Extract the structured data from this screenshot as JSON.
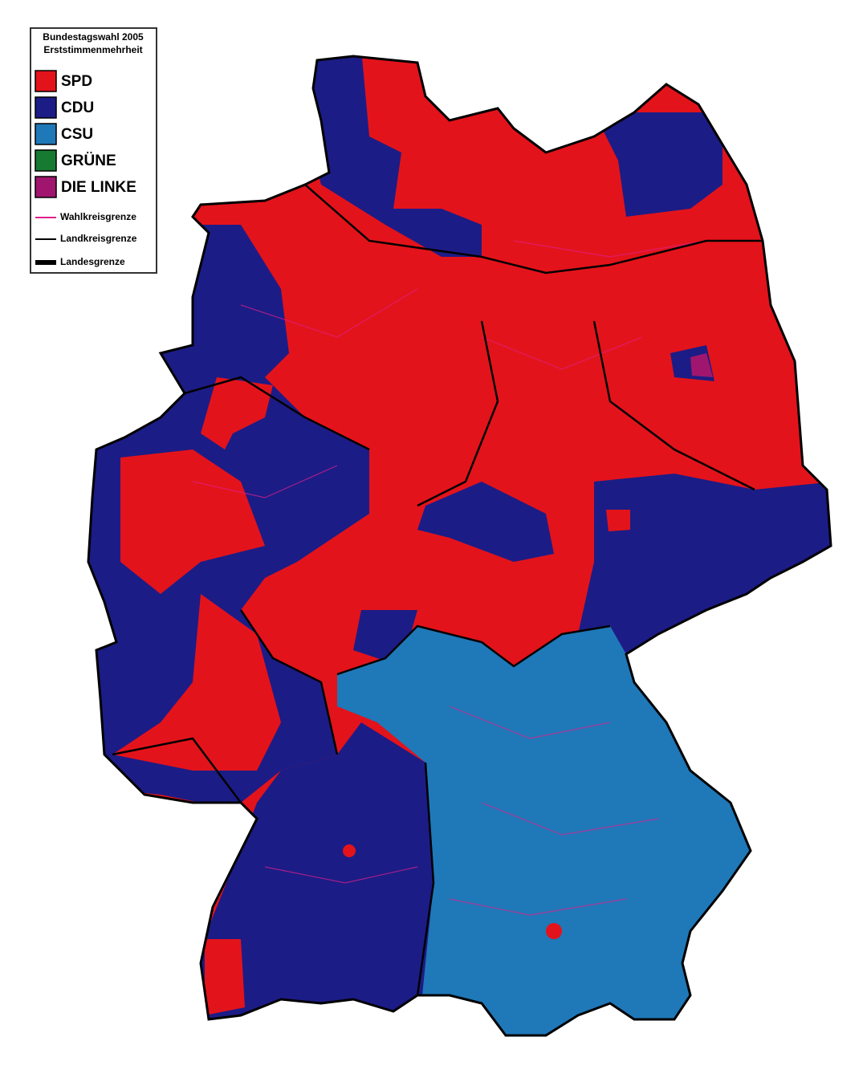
{
  "legend": {
    "title": [
      "Bundestagswahl 2005",
      "Erststimmenmehrheit"
    ],
    "parties": [
      {
        "label": "SPD",
        "color": "#e3131b"
      },
      {
        "label": "CDU",
        "color": "#1c1c86"
      },
      {
        "label": "CSU",
        "color": "#1f78b8"
      },
      {
        "label": "GRÜNE",
        "color": "#177a31"
      },
      {
        "label": "DIE LINKE",
        "color": "#a0166e"
      }
    ],
    "boundaries": [
      {
        "label": "Wahlkreisgrenze",
        "color": "#e0208a"
      },
      {
        "label": "Landkreisgrenze",
        "color": "#000000"
      },
      {
        "label": "Landesgrenze",
        "color": "#000000"
      }
    ]
  }
}
